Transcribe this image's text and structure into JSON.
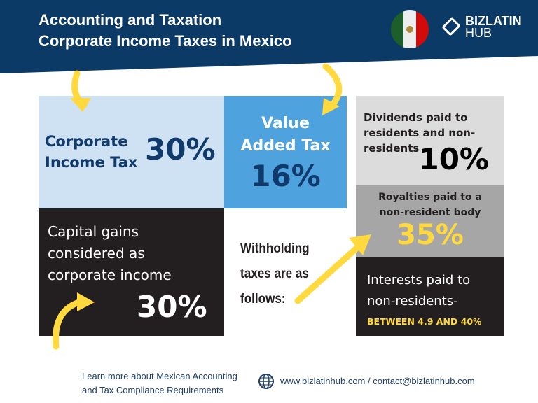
{
  "header": {
    "title_line1": "Accounting and Taxation",
    "title_line2": "Corporate Income Taxes in Mexico",
    "logo_line1": "BIZLATIN",
    "logo_line2": "HUB",
    "flag": "mexico-flag"
  },
  "colors": {
    "navy": "#0b3a66",
    "accent": "#ffd93d",
    "light_blue": "#cfe2f3",
    "blue": "#4ea3df",
    "dark": "#231f20"
  },
  "cards": {
    "corporate": {
      "label_line1": "Corporate",
      "label_line2": "Income Tax",
      "value": "30%"
    },
    "vat": {
      "label_line1": "Value",
      "label_line2": "Added Tax",
      "value": "16%"
    },
    "dividends": {
      "line1": "Dividends paid to",
      "line2": "residents and non-",
      "line3": "residents",
      "value": "10%"
    },
    "royalties": {
      "line1": "Royalties paid to a",
      "line2": "non-resident body",
      "value": "35%"
    },
    "interests": {
      "line1": "Interests paid to",
      "line2": "non-residents-",
      "value": "BETWEEN 4.9 AND 40%"
    },
    "capital": {
      "line1": "Capital gains",
      "line2": "considered as",
      "line3": "corporate income",
      "value": "30%"
    }
  },
  "withholding": {
    "line1": "Withholding",
    "line2": "taxes are as",
    "line3": "follows:"
  },
  "footer": {
    "learn_line1": "Learn more about Mexican Accounting",
    "learn_line2": "and Tax Compliance Requirements",
    "contact": "www.bizlatinhub.com / contact@bizlatinhub.com"
  }
}
